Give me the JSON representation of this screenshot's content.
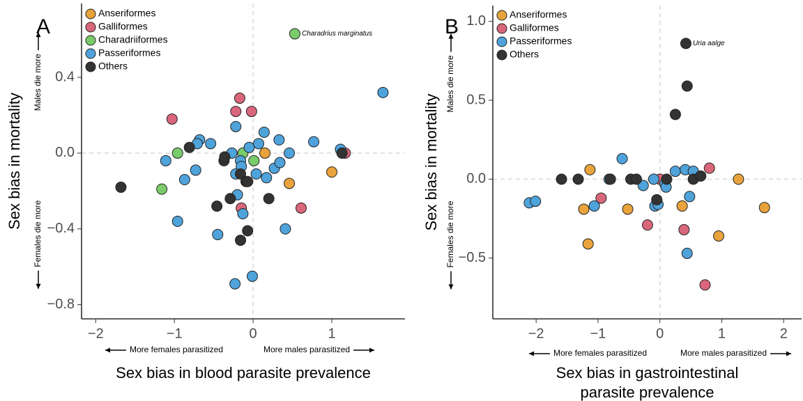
{
  "chart_data": [
    {
      "type": "scatter",
      "panel_label": "A",
      "xlabel": [
        "Sex bias in blood parasite prevalence"
      ],
      "ylabel": "Sex bias in mortality",
      "y_annotations": [
        "Males die more",
        "Females die more"
      ],
      "x_annotations": [
        "More females parasitized",
        "More males parasitized"
      ],
      "xlim": [
        -2.18,
        1.93
      ],
      "ylim": [
        -0.875,
        0.79
      ],
      "xticks": [
        {
          "value": -2,
          "label": "−2"
        },
        {
          "value": -1,
          "label": "−1"
        },
        0,
        1
      ],
      "yticks": [
        0.4,
        {
          "value": 0,
          "label": "0.0"
        },
        {
          "value": -0.4,
          "label": "−0.4"
        },
        {
          "value": -0.8,
          "label": "−0.8"
        }
      ],
      "zero_lines": true,
      "legend": "top-left",
      "annotations": [
        {
          "text": "Charadrius marginatus",
          "x": 0.53,
          "y": 0.63
        }
      ],
      "series": [
        {
          "name": "Anseriformes",
          "color": "#e8a33c",
          "x": [
            0.15,
            0.46,
            1.0
          ],
          "values": [
            0.0,
            -0.16,
            -0.1
          ]
        },
        {
          "name": "Galliformes",
          "color": "#d9667a",
          "x": [
            -1.03,
            -0.17,
            -0.22,
            -0.02,
            -0.15,
            0.61,
            1.17
          ],
          "values": [
            0.18,
            0.29,
            0.22,
            0.22,
            -0.29,
            -0.29,
            0.0
          ]
        },
        {
          "name": "Charadriiformes",
          "color": "#7acb6a",
          "x": [
            0.53,
            -0.96,
            -1.16,
            -0.13,
            0.01
          ],
          "values": [
            0.63,
            0.0,
            -0.19,
            0.0,
            -0.04
          ]
        },
        {
          "name": "Passeriformes",
          "color": "#4fa3db",
          "x": [
            1.65,
            -1.11,
            -0.96,
            -0.87,
            -0.73,
            -0.68,
            -0.71,
            -0.54,
            -0.45,
            -0.27,
            -0.22,
            -0.22,
            -0.2,
            -0.23,
            -0.16,
            -0.15,
            -0.13,
            -0.05,
            -0.01,
            0.07,
            0.04,
            0.14,
            0.17,
            0.27,
            0.33,
            0.34,
            0.41,
            0.46,
            0.77,
            1.11
          ],
          "values": [
            0.32,
            -0.04,
            -0.36,
            -0.14,
            -0.09,
            0.07,
            0.05,
            0.05,
            -0.43,
            0.0,
            0.14,
            -0.11,
            -0.22,
            -0.69,
            -0.04,
            -0.07,
            -0.32,
            0.03,
            -0.65,
            0.05,
            -0.11,
            0.11,
            -0.13,
            -0.08,
            0.07,
            -0.05,
            -0.4,
            0.0,
            0.06,
            0.02
          ]
        },
        {
          "name": "Others",
          "color": "#333333",
          "x": [
            -1.68,
            -0.81,
            -0.46,
            -0.37,
            -0.36,
            -0.29,
            -0.16,
            -0.16,
            -0.09,
            -0.07,
            -0.07,
            0.2,
            1.13
          ],
          "values": [
            -0.18,
            0.03,
            -0.28,
            -0.04,
            -0.02,
            -0.24,
            -0.11,
            -0.46,
            -0.15,
            -0.15,
            -0.41,
            -0.24,
            0.0
          ]
        }
      ]
    },
    {
      "type": "scatter",
      "panel_label": "B",
      "xlabel": [
        "Sex bias in gastrointestinal",
        "parasite prevalence"
      ],
      "ylabel": "Sex bias in mortality",
      "y_annotations": [
        "Males die more",
        "Females die more"
      ],
      "x_annotations": [
        "More females parasitized",
        "More males parasitized"
      ],
      "xlim": [
        -2.7,
        2.29
      ],
      "ylim": [
        -0.885,
        1.1
      ],
      "xticks": [
        {
          "value": -2,
          "label": "−2"
        },
        {
          "value": -1,
          "label": "−1"
        },
        0,
        1,
        2
      ],
      "yticks": [
        {
          "value": 1,
          "label": "1.0"
        },
        0.5,
        {
          "value": 0,
          "label": "0.0"
        },
        {
          "value": -0.5,
          "label": "−0.5"
        }
      ],
      "zero_lines": true,
      "legend": "top-left",
      "annotations": [
        {
          "text": "Uria aalge",
          "x": 0.42,
          "y": 0.86
        }
      ],
      "series": [
        {
          "name": "Anseriformes",
          "color": "#e8a33c",
          "x": [
            -1.13,
            -1.23,
            -1.16,
            -0.52,
            0.36,
            0.95,
            1.27,
            1.69
          ],
          "values": [
            0.06,
            -0.19,
            -0.41,
            -0.19,
            -0.17,
            -0.36,
            0.0,
            -0.18
          ]
        },
        {
          "name": "Galliformes",
          "color": "#d9667a",
          "x": [
            -0.95,
            -0.2,
            0.0,
            0.39,
            0.8,
            0.73
          ],
          "values": [
            -0.12,
            -0.29,
            0.0,
            -0.32,
            0.07,
            -0.67
          ]
        },
        {
          "name": "Passeriformes",
          "color": "#4fa3db",
          "x": [
            -2.11,
            -2.01,
            -1.06,
            -0.82,
            -0.61,
            -0.27,
            -0.1,
            -0.08,
            -0.03,
            0.08,
            0.1,
            0.25,
            0.41,
            0.48,
            0.54,
            0.44
          ],
          "values": [
            -0.15,
            -0.14,
            -0.17,
            0.0,
            0.13,
            -0.04,
            0.0,
            -0.17,
            -0.16,
            -0.03,
            -0.05,
            0.05,
            0.06,
            -0.11,
            0.05,
            -0.47
          ]
        },
        {
          "name": "Others",
          "color": "#333333",
          "x": [
            -1.59,
            -1.32,
            -0.8,
            -0.47,
            -0.38,
            -0.05,
            0.11,
            0.25,
            0.42,
            0.44,
            0.54,
            0.66
          ],
          "values": [
            0.0,
            0.0,
            0.0,
            0.0,
            0.0,
            -0.13,
            0.0,
            0.41,
            0.86,
            0.59,
            0.0,
            0.02
          ]
        }
      ]
    }
  ]
}
